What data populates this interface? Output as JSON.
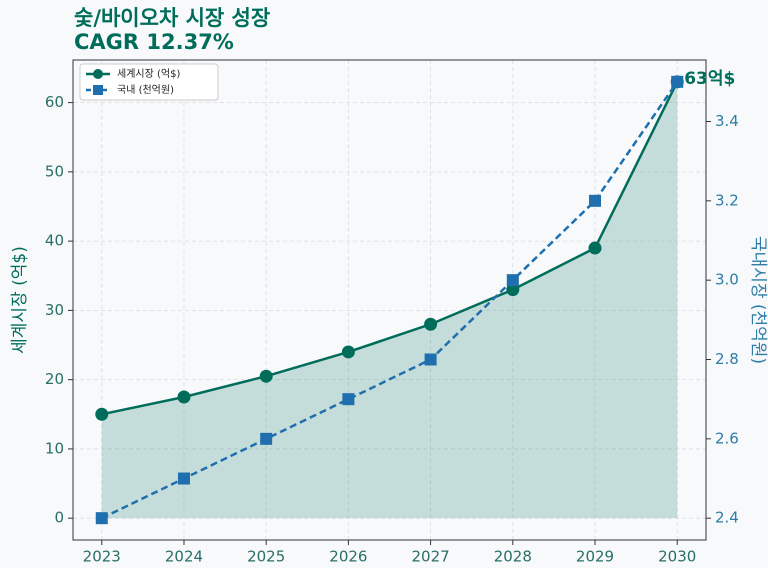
{
  "chart_data": {
    "type": "line",
    "title": "숯/바이오차 시장 성장",
    "subtitle": "CAGR 12.37%",
    "x": [
      2023,
      2024,
      2025,
      2026,
      2027,
      2028,
      2029,
      2030
    ],
    "xlim": [
      2022.65,
      2030.35
    ],
    "xticks": [
      2023,
      2024,
      2025,
      2026,
      2027,
      2028,
      2029,
      2030
    ],
    "ylabel": "세계시장 (억$)",
    "y2label": "국내시장 (천억원)",
    "ylim": [
      -3.15,
      66.15
    ],
    "yticks": [
      0,
      10,
      20,
      30,
      40,
      50,
      60
    ],
    "y2lim": [
      2.345,
      3.555
    ],
    "y2ticks": [
      2.4,
      2.6,
      2.8,
      {
        "value": 3.0,
        "label": "3.0"
      },
      3.2,
      3.4
    ],
    "grid": true,
    "legend": "upper left",
    "annotation": "63억$",
    "series": [
      {
        "name": "세계시장 (억$)",
        "color": "#006d5b",
        "values": [
          15,
          17.5,
          20.5,
          24,
          28,
          33,
          39,
          63
        ],
        "fill": true
      },
      {
        "name": "국내 (천억원)",
        "color": "#1f6fae",
        "axis": "y2",
        "values": [
          2.4,
          2.5,
          2.6,
          2.7,
          2.8,
          3.0,
          3.2,
          3.5
        ],
        "dashed": true
      }
    ]
  }
}
